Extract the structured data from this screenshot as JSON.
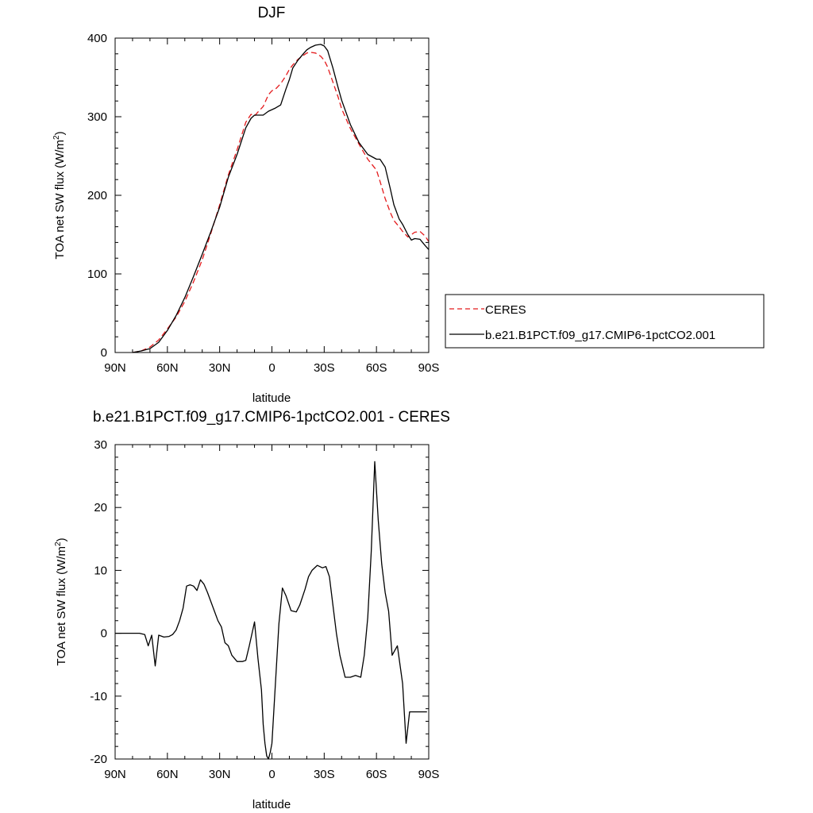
{
  "chart_data": [
    {
      "type": "line",
      "title": "DJF",
      "xlabel": "latitude",
      "ylabel": "TOA net SW flux (W/m",
      "ylabel_sup": "2",
      "ylabel_end": ")",
      "xlim": [
        90,
        -90
      ],
      "ylim": [
        0,
        400
      ],
      "x_tick_values": [
        90,
        60,
        30,
        0,
        -30,
        -60,
        -90
      ],
      "x_tick_labels": [
        "90N",
        "60N",
        "30N",
        "0",
        "30S",
        "60S",
        "90S"
      ],
      "y_tick_values": [
        0,
        100,
        200,
        300,
        400
      ],
      "y_tick_labels": [
        "0",
        "100",
        "200",
        "300",
        "400"
      ],
      "legend_position": "right",
      "series": [
        {
          "name": "CERES",
          "color": "#e41a1c",
          "dash": "dashed",
          "x": [
            80,
            75,
            70,
            65,
            60,
            55,
            50,
            45,
            40,
            35,
            30,
            25,
            20,
            15,
            12,
            10,
            8,
            5,
            2,
            0,
            -2,
            -5,
            -8,
            -10,
            -12,
            -15,
            -18,
            -20,
            -22,
            -25,
            -28,
            -30,
            -32,
            -35,
            -38,
            -40,
            -45,
            -50,
            -55,
            -60,
            -62,
            -65,
            -68,
            -70,
            -73,
            -75,
            -78,
            -80,
            -82,
            -85,
            -88,
            -90
          ],
          "y": [
            0,
            2,
            7,
            16,
            30,
            45,
            65,
            90,
            118,
            152,
            188,
            226,
            258,
            293,
            303,
            301,
            306,
            313,
            328,
            333,
            335,
            342,
            352,
            360,
            366,
            373,
            378,
            381,
            382,
            381,
            377,
            372,
            363,
            344,
            325,
            310,
            285,
            265,
            246,
            232,
            218,
            196,
            178,
            168,
            160,
            154,
            147,
            150,
            153,
            154,
            148,
            141
          ]
        },
        {
          "name": "b.e21.B1PCT.f09_g17.CMIP6-1pctCO2.001",
          "color": "#000000",
          "dash": "solid",
          "x": [
            80,
            75,
            70,
            65,
            60,
            55,
            50,
            45,
            40,
            35,
            30,
            25,
            20,
            15,
            12,
            10,
            8,
            5,
            2,
            0,
            -2,
            -5,
            -8,
            -10,
            -12,
            -15,
            -18,
            -20,
            -22,
            -25,
            -28,
            -30,
            -32,
            -35,
            -38,
            -40,
            -45,
            -50,
            -55,
            -60,
            -62,
            -65,
            -68,
            -70,
            -73,
            -75,
            -78,
            -80,
            -82,
            -85,
            -88,
            -90
          ],
          "y": [
            0,
            2,
            5,
            13,
            28,
            47,
            70,
            97,
            125,
            154,
            185,
            223,
            252,
            286,
            298,
            302,
            302,
            302,
            307,
            309,
            311,
            315,
            335,
            347,
            362,
            372,
            380,
            385,
            388,
            391,
            392,
            390,
            384,
            362,
            337,
            321,
            290,
            267,
            252,
            246,
            246,
            236,
            208,
            188,
            170,
            163,
            150,
            143,
            145,
            144,
            136,
            131
          ]
        }
      ]
    },
    {
      "type": "line",
      "title": "b.e21.B1PCT.f09_g17.CMIP6-1pctCO2.001 - CERES",
      "xlabel": "latitude",
      "ylabel": "TOA net SW flux (W/m",
      "ylabel_sup": "2",
      "ylabel_end": ")",
      "xlim": [
        90,
        -90
      ],
      "ylim": [
        -20,
        30
      ],
      "x_tick_values": [
        90,
        60,
        30,
        0,
        -30,
        -60,
        -90
      ],
      "x_tick_labels": [
        "90N",
        "60N",
        "30N",
        "0",
        "30S",
        "60S",
        "90S"
      ],
      "y_tick_values": [
        -20,
        -10,
        0,
        10,
        20,
        30
      ],
      "y_tick_labels": [
        "-20",
        "-10",
        "0",
        "10",
        "20",
        "30"
      ],
      "series": [
        {
          "color": "#000000",
          "dash": "solid",
          "x": [
            90,
            84,
            76,
            73,
            71,
            69,
            67,
            65,
            62,
            59,
            57,
            55,
            53,
            51,
            49,
            47,
            45,
            43,
            41,
            39,
            37,
            35,
            33,
            31,
            29,
            27,
            25,
            23,
            20,
            17,
            15,
            13,
            10,
            8,
            6,
            5,
            4,
            3,
            2,
            1,
            0,
            -2,
            -4,
            -6,
            -8,
            -11,
            -14,
            -16,
            -19,
            -21,
            -23,
            -26,
            -29,
            -31,
            -33,
            -35,
            -37,
            -39,
            -42,
            -45,
            -48,
            -51,
            -53,
            -55,
            -57,
            -59,
            -61,
            -63,
            -65,
            -67,
            -69,
            -72,
            -75,
            -77,
            -79,
            -81,
            -83,
            -85,
            -87,
            -89
          ],
          "y": [
            0,
            0,
            0,
            -0.2,
            -2,
            -0.3,
            -5.2,
            -0.3,
            -0.6,
            -0.5,
            -0.2,
            0.5,
            2,
            4,
            7.5,
            7.7,
            7.5,
            6.8,
            8.5,
            7.8,
            6.5,
            5,
            3.5,
            2,
            1,
            -1.5,
            -2,
            -3.5,
            -4.5,
            -4.5,
            -4.3,
            -2,
            1.8,
            -4,
            -9,
            -14.5,
            -17.5,
            -19.5,
            -20,
            -19,
            -17.5,
            -8,
            1.5,
            7.2,
            6,
            3.6,
            3.4,
            4.5,
            7,
            9,
            10,
            10.8,
            10.4,
            10.6,
            9,
            4.5,
            0,
            -3.5,
            -7,
            -7,
            -6.7,
            -7,
            -3.5,
            2.5,
            13,
            27.3,
            18,
            11,
            6.5,
            3.5,
            -3.5,
            -2,
            -8,
            -17.5,
            -12.5,
            -12.5,
            -12.5,
            -12.5,
            -12.5,
            -12.5
          ]
        }
      ]
    }
  ]
}
